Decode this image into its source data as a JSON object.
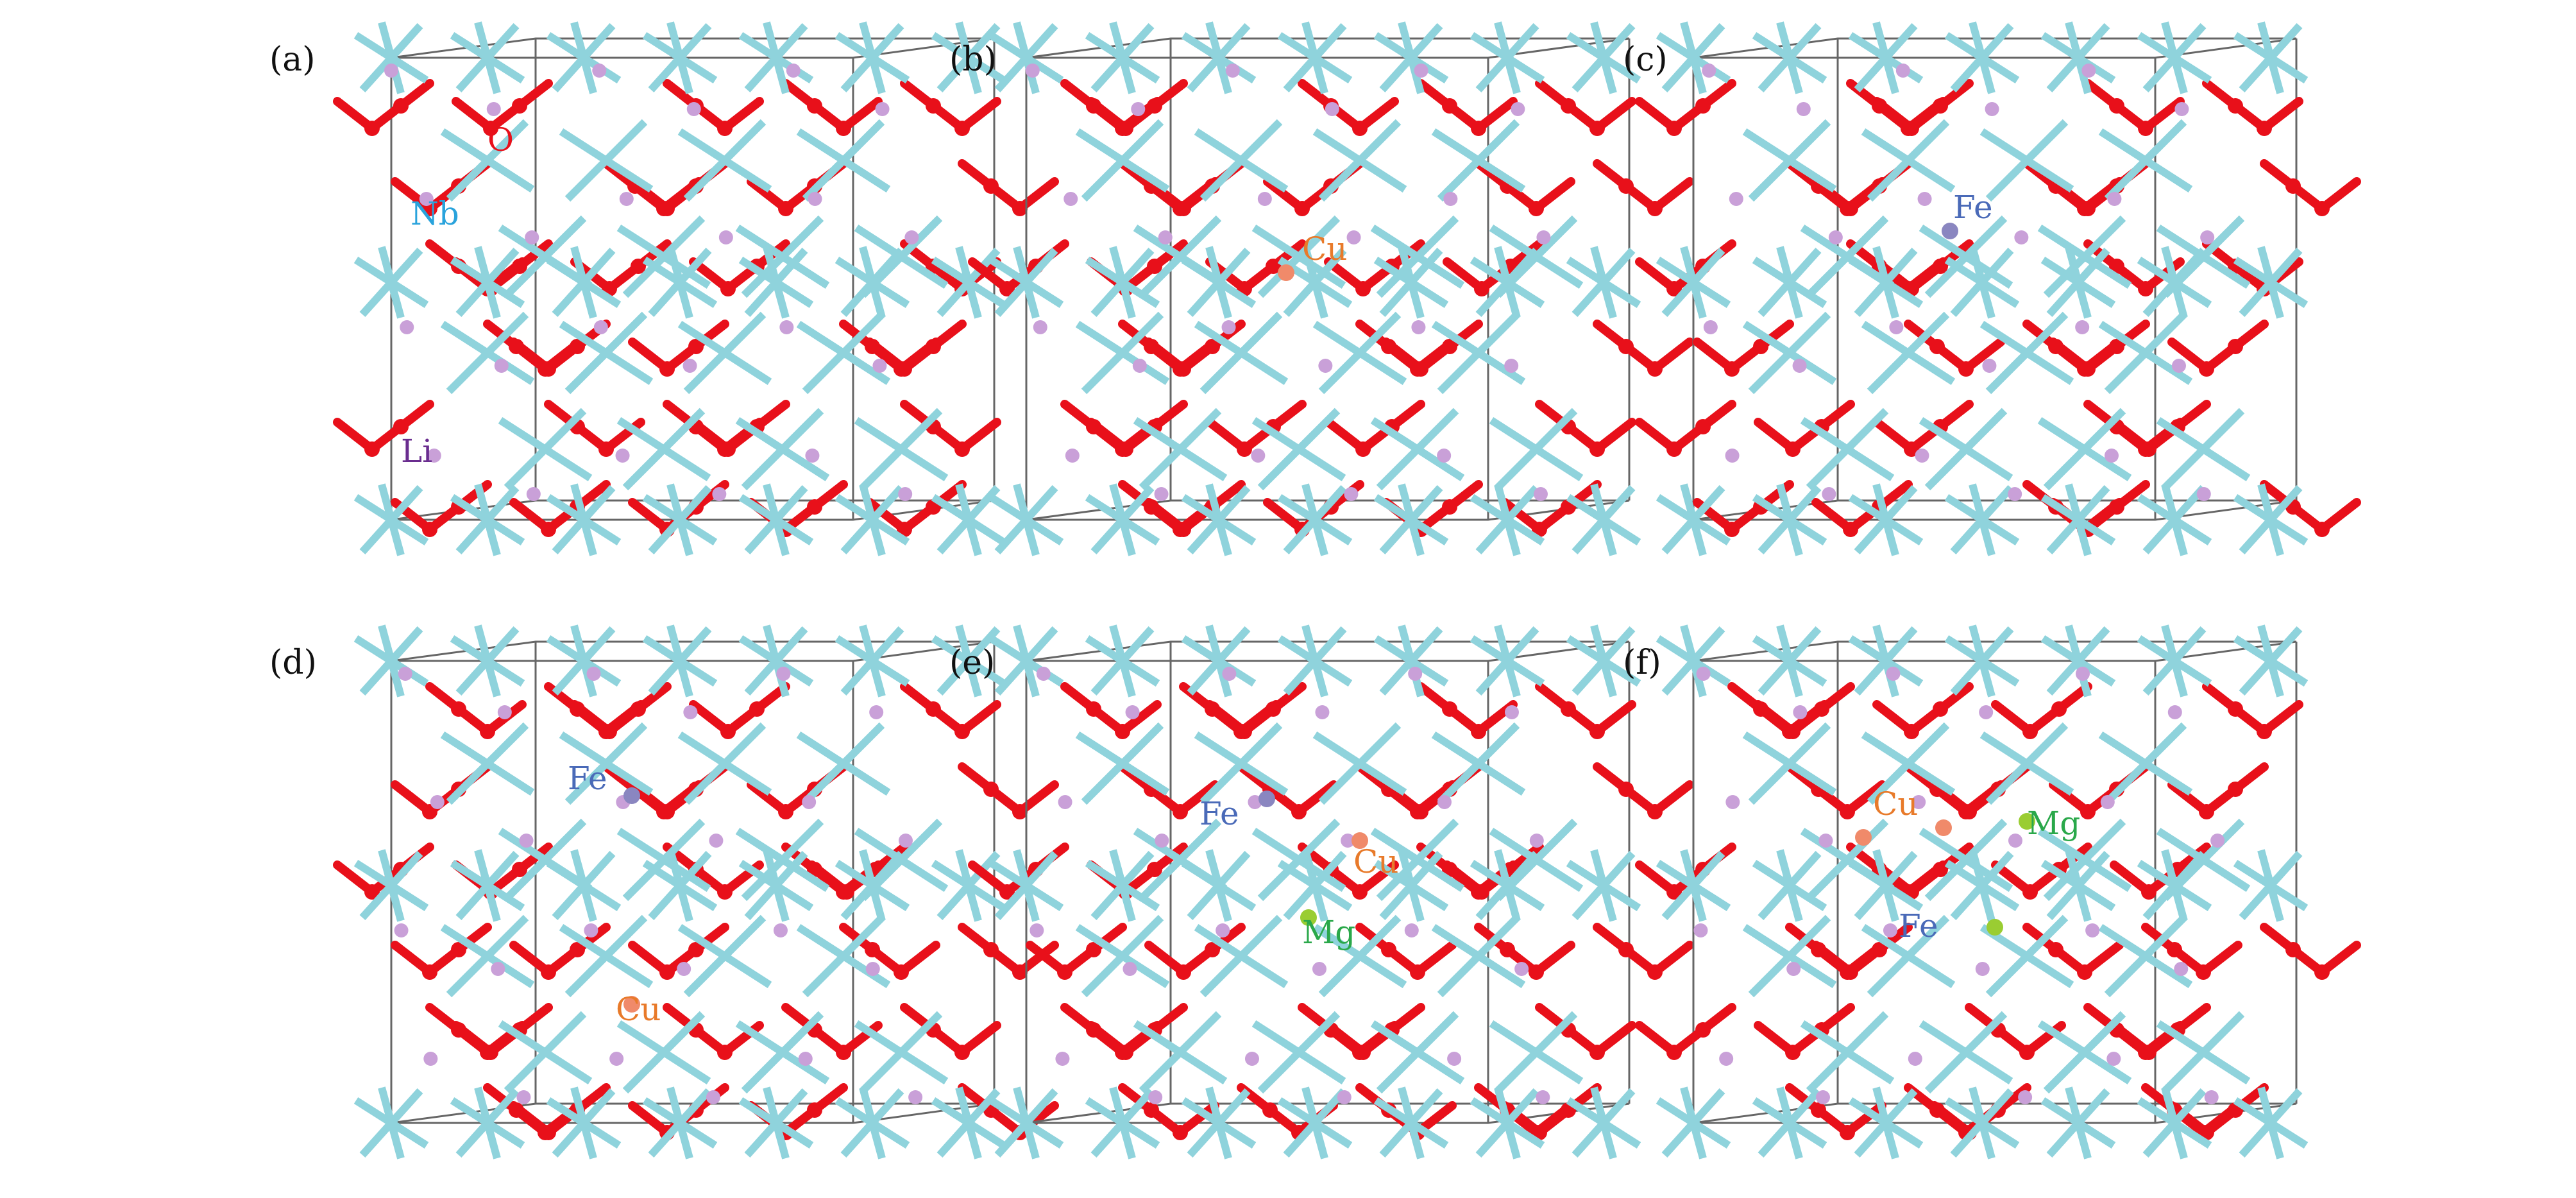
{
  "panels": [
    {
      "label": "(a)",
      "atoms": [
        {
          "text": "O",
          "color": "#e8101a"
        },
        {
          "text": "Nb",
          "color": "#29a3dc"
        },
        {
          "text": "Li",
          "color": "#6a2d8f"
        }
      ]
    },
    {
      "label": "(b)",
      "atoms": [
        {
          "text": "Cu",
          "color": "#e87a2a"
        }
      ]
    },
    {
      "label": "(c)",
      "atoms": [
        {
          "text": "Fe",
          "color": "#4a6ab8"
        }
      ]
    },
    {
      "label": "(d)",
      "atoms": [
        {
          "text": "Fe",
          "color": "#4a6ab8"
        },
        {
          "text": "Cu",
          "color": "#e87a2a"
        }
      ]
    },
    {
      "label": "(e)",
      "atoms": [
        {
          "text": "Fe",
          "color": "#4a6ab8"
        },
        {
          "text": "Cu",
          "color": "#e87a2a"
        },
        {
          "text": "Mg",
          "color": "#2aa84a"
        }
      ]
    },
    {
      "label": "(f)",
      "atoms": [
        {
          "text": "Cu",
          "color": "#e87a2a"
        },
        {
          "text": "Mg",
          "color": "#2aa84a"
        },
        {
          "text": "Fe",
          "color": "#4a6ab8"
        }
      ]
    }
  ],
  "colors": {
    "Nb": "#8fd3dc",
    "O": "#e8101a",
    "Li": "#c9a0d8",
    "Cu": "#f08a6a",
    "Fe": "#8a86c0",
    "Mg": "#9acd32",
    "cell": "#666666"
  }
}
